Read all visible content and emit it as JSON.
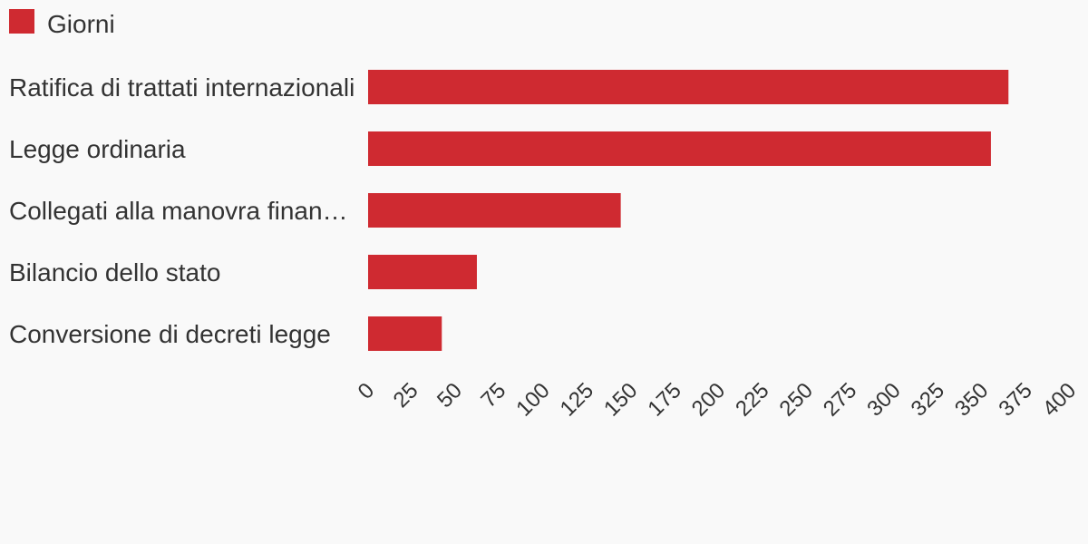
{
  "chart_data": {
    "type": "bar",
    "orientation": "horizontal",
    "categories": [
      "Ratifica di trattati internazionali",
      "Legge ordinaria",
      "Collegati alla manovra finan…",
      "Bilancio dello stato",
      "Conversione di decreti legge"
    ],
    "series": [
      {
        "name": "Giorni",
        "color": "#cf2a31",
        "values": [
          365,
          355,
          144,
          62,
          42
        ]
      }
    ],
    "xlim": [
      0,
      400
    ],
    "x_ticks": [
      "0",
      "25",
      "50",
      "75",
      "100",
      "125",
      "150",
      "175",
      "200",
      "225",
      "250",
      "275",
      "300",
      "325",
      "350",
      "375",
      "400"
    ],
    "legend_position": "top-left",
    "grid": false
  }
}
